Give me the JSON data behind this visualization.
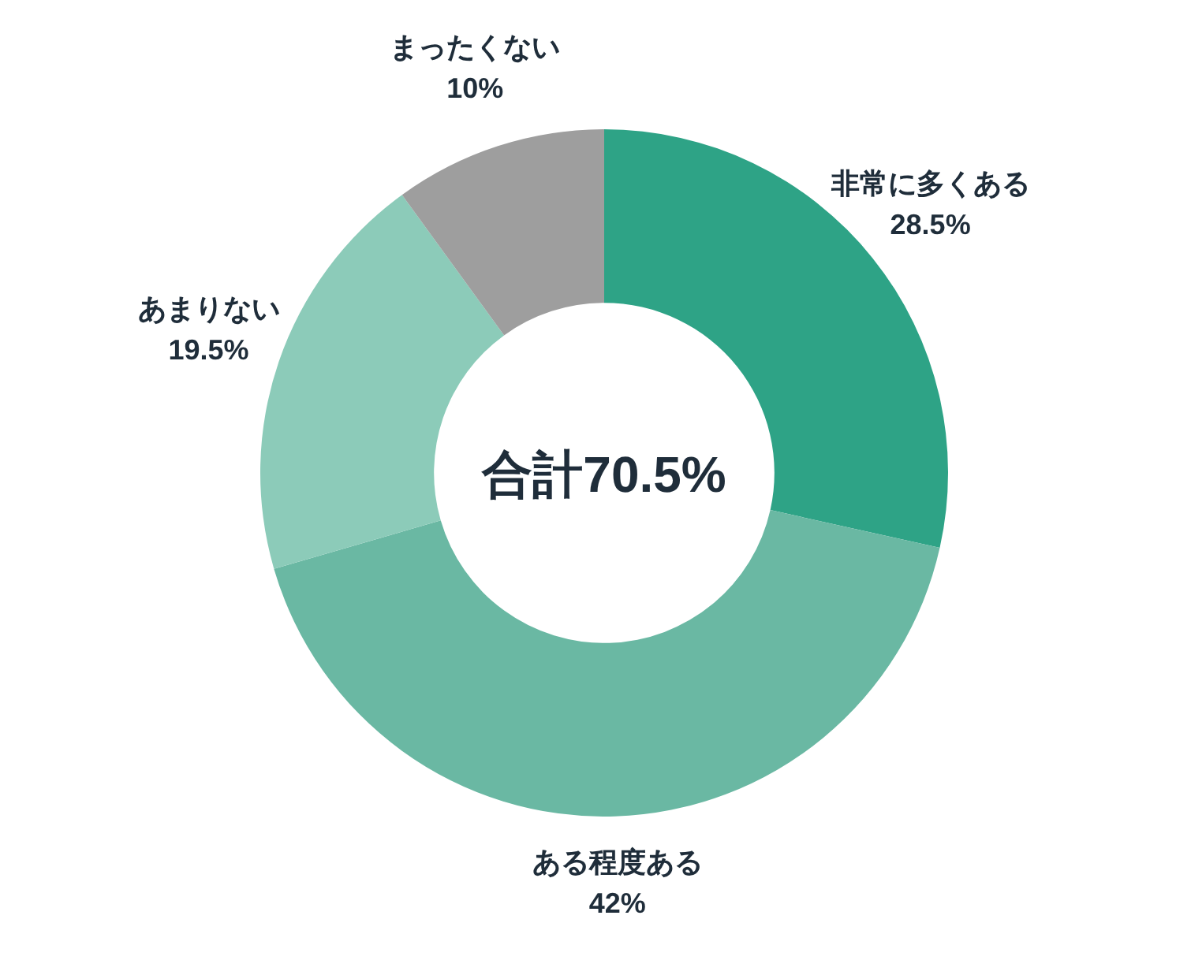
{
  "chart_data": {
    "type": "donut",
    "categories": [
      "非常に多くある",
      "ある程度ある",
      "あまりない",
      "まったくない"
    ],
    "values": [
      28.5,
      42,
      19.5,
      10
    ],
    "colors": [
      "#2ea386",
      "#6ab8a3",
      "#8ccbb9",
      "#9e9e9e"
    ],
    "value_labels": [
      "28.5%",
      "42%",
      "19.5%",
      "10%"
    ],
    "annotations": [
      "合計70.5%"
    ]
  }
}
